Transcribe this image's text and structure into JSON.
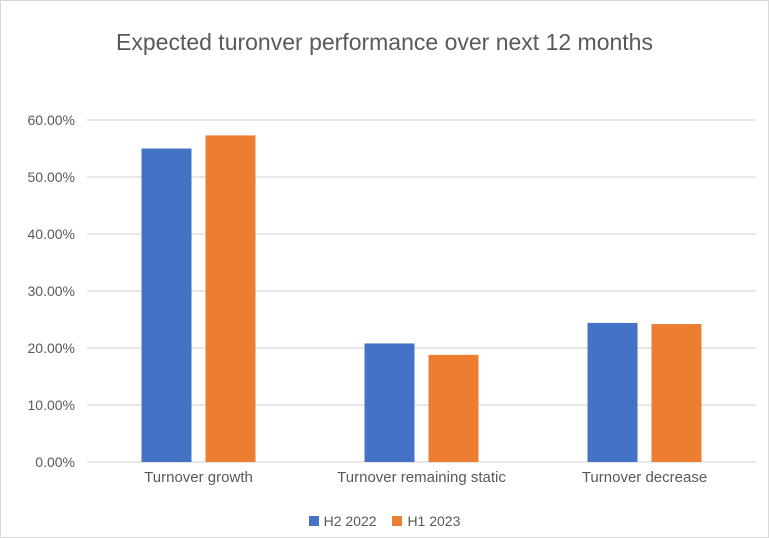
{
  "chart_data": {
    "type": "bar",
    "title": "Expected turonver performance over next 12 months",
    "categories": [
      "Turnover growth",
      "Turnover remaining static",
      "Turnover decrease"
    ],
    "series": [
      {
        "name": "H2 2022",
        "color": "#4472c4",
        "values": [
          55.0,
          20.8,
          24.4
        ]
      },
      {
        "name": "H1 2023",
        "color": "#ed7d31",
        "values": [
          57.3,
          18.8,
          24.2
        ]
      }
    ],
    "ylim": [
      0,
      60
    ],
    "yticks": [
      "0.00%",
      "10.00%",
      "20.00%",
      "30.00%",
      "40.00%",
      "50.00%",
      "60.00%"
    ],
    "xlabel": "",
    "ylabel": "",
    "grid": true,
    "legend": "bottom"
  }
}
